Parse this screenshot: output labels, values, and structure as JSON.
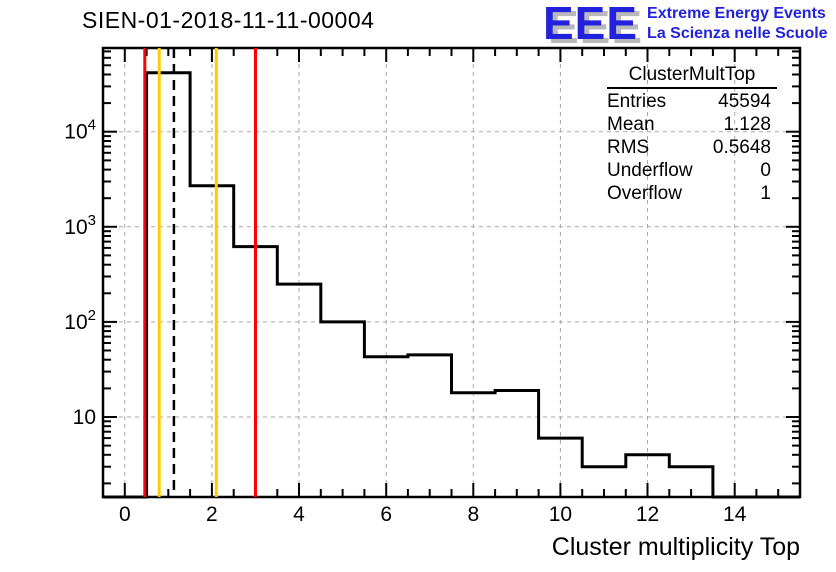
{
  "title": "SIEN-01-2018-11-11-00004",
  "logo": {
    "acronym": "EEE",
    "line1": "Extreme Energy Events",
    "line2": "La Scienza nelle Scuole",
    "text_color": "#2222dd",
    "shadow_color": "#b9b9b9"
  },
  "stats": {
    "title": "ClusterMultTop",
    "rows": [
      {
        "label": "Entries",
        "value": "45594"
      },
      {
        "label": "Mean",
        "value": "1.128"
      },
      {
        "label": "RMS",
        "value": "0.5648"
      },
      {
        "label": "Underflow",
        "value": "0"
      },
      {
        "label": "Overflow",
        "value": "1"
      }
    ]
  },
  "chart_data": {
    "type": "bar",
    "title": "SIEN-01-2018-11-11-00004",
    "xlabel": "Cluster multiplicity Top",
    "ylabel": "",
    "x_scale": "linear",
    "y_scale": "log",
    "xlim": [
      -0.5,
      15.5
    ],
    "ylim": [
      1.44,
      76000
    ],
    "grid": true,
    "grid_color": "#a8a8a8",
    "histogram_color": "#000000",
    "bin_width": 1,
    "bin_centers": [
      1,
      2,
      3,
      4,
      5,
      6,
      7,
      8,
      9,
      10,
      11,
      12,
      13
    ],
    "values": [
      41800,
      2700,
      620,
      250,
      100,
      43,
      45,
      18,
      19,
      6,
      3,
      4,
      3
    ],
    "x_major_ticks": [
      0,
      2,
      4,
      6,
      8,
      10,
      12,
      14
    ],
    "x_minor_step": 0.5,
    "y_major_ticks": [
      10,
      100,
      1000,
      10000
    ],
    "y_label_exponents": [
      1,
      2,
      3,
      4
    ],
    "vlines": [
      {
        "x": 0.46,
        "color": "#ff0000",
        "style": "solid",
        "name": "red-line-left"
      },
      {
        "x": 3.0,
        "color": "#ff0000",
        "style": "solid",
        "name": "red-line-right"
      },
      {
        "x": 0.79,
        "color": "#ffcc00",
        "style": "solid",
        "name": "yellow-line-left"
      },
      {
        "x": 2.1,
        "color": "#ffcc00",
        "style": "solid",
        "name": "yellow-line-right"
      },
      {
        "x": 1.128,
        "color": "#000000",
        "style": "dashed",
        "name": "mean-line"
      }
    ]
  }
}
